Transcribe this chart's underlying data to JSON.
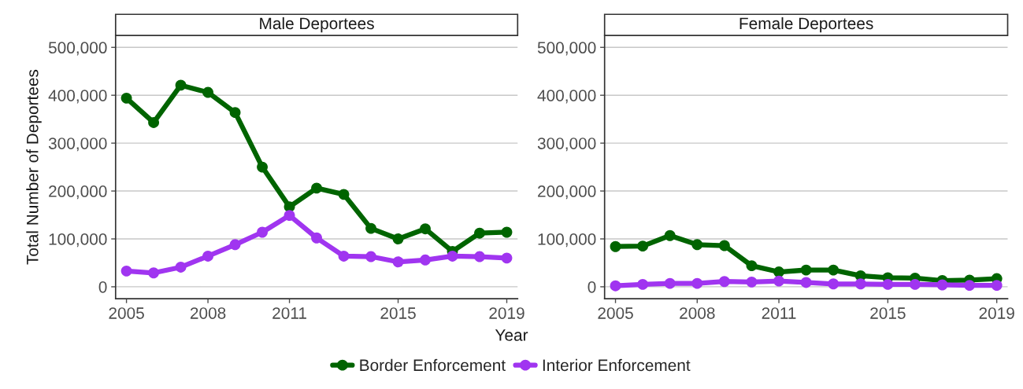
{
  "chart_data": [
    {
      "type": "line",
      "title": "Male Deportees",
      "xlabel": "Year",
      "ylabel": "Total Number of Deportees",
      "x": [
        2005,
        2006,
        2007,
        2008,
        2009,
        2010,
        2011,
        2012,
        2013,
        2014,
        2015,
        2016,
        2017,
        2018,
        2019
      ],
      "series": [
        {
          "name": "Border Enforcement",
          "color": "#006400",
          "values": [
            394000,
            343000,
            421000,
            406000,
            364000,
            250000,
            167000,
            206000,
            193000,
            122000,
            100000,
            121000,
            74000,
            112000,
            114000
          ]
        },
        {
          "name": "Interior Enforcement",
          "color": "#a035f0",
          "values": [
            33000,
            29000,
            41000,
            64000,
            88000,
            114000,
            149000,
            102000,
            64000,
            63000,
            52000,
            56000,
            64000,
            63000,
            60000
          ]
        }
      ],
      "xlim": [
        2004.6,
        2019.4
      ],
      "xticks": [
        2005,
        2008,
        2011,
        2015,
        2019
      ],
      "ylim": [
        -25000,
        525000
      ],
      "yticks": [
        0,
        {
          "value": 100000,
          "label": "100,000"
        },
        {
          "value": 200000,
          "label": "200,000"
        },
        {
          "value": 300000,
          "label": "300,000"
        },
        {
          "value": 400000,
          "label": "400,000"
        },
        {
          "value": 500000,
          "label": "500,000"
        }
      ],
      "grid": "y",
      "marker": "circle",
      "line_style": "solid",
      "legend": "bottom"
    },
    {
      "type": "line",
      "title": "Female Deportees",
      "x": [
        2005,
        2006,
        2007,
        2008,
        2009,
        2010,
        2011,
        2012,
        2013,
        2014,
        2015,
        2016,
        2017,
        2018,
        2019
      ],
      "series": [
        {
          "color": "#006400",
          "values": [
            84000,
            85000,
            107000,
            88000,
            86000,
            44000,
            31000,
            35000,
            35000,
            23000,
            19000,
            18000,
            13000,
            14000,
            17000
          ]
        },
        {
          "color": "#a035f0",
          "values": [
            2000,
            5000,
            7000,
            7000,
            11000,
            10000,
            12000,
            9000,
            6000,
            6000,
            5000,
            5000,
            4000,
            3000,
            3000
          ]
        }
      ],
      "xlim": [
        2004.6,
        2019.4
      ],
      "xticks": [
        2005,
        2008,
        2011,
        2015,
        2019
      ],
      "ylim": [
        -25000,
        525000
      ],
      "yticks": [
        0,
        {
          "value": 100000,
          "label": "100,000"
        },
        {
          "value": 200000,
          "label": "200,000"
        },
        {
          "value": 300000,
          "label": "300,000"
        },
        {
          "value": 400000,
          "label": "400,000"
        },
        {
          "value": 500000,
          "label": "500,000"
        }
      ],
      "grid": "y",
      "marker": "circle",
      "line_style": "solid"
    }
  ]
}
